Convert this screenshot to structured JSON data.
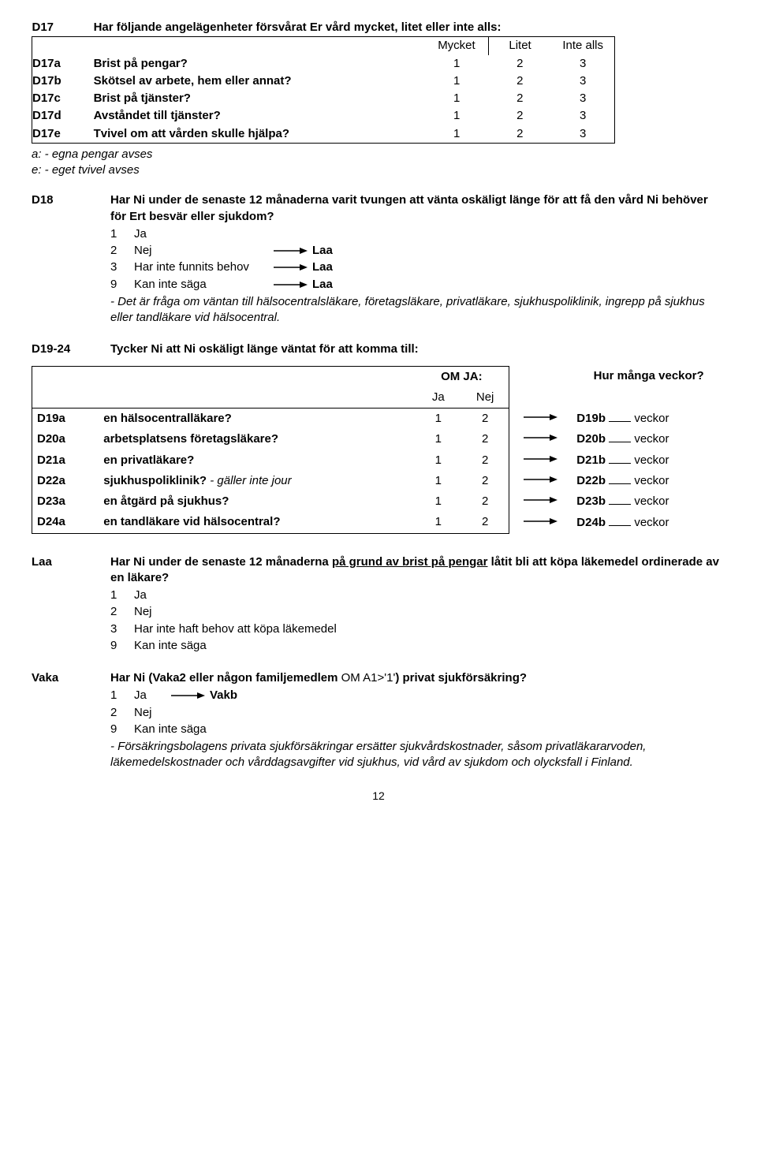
{
  "d17": {
    "code": "D17",
    "lead": "Har följande angelägenheter försvårat Er vård mycket, litet eller inte alls:",
    "cols": [
      "Mycket",
      "Litet",
      "Inte alls"
    ],
    "rows": [
      {
        "code": "D17a",
        "text": "Brist på pengar?",
        "vals": [
          "1",
          "2",
          "3"
        ]
      },
      {
        "code": "D17b",
        "text": "Skötsel av arbete, hem eller annat?",
        "vals": [
          "1",
          "2",
          "3"
        ]
      },
      {
        "code": "D17c",
        "text": "Brist på tjänster?",
        "vals": [
          "1",
          "2",
          "3"
        ]
      },
      {
        "code": "D17d",
        "text": "Avståndet till tjänster?",
        "vals": [
          "1",
          "2",
          "3"
        ]
      },
      {
        "code": "D17e",
        "text": "Tvivel om att vården skulle hjälpa?",
        "vals": [
          "1",
          "2",
          "3"
        ]
      }
    ],
    "note_a": "a: - egna pengar avses",
    "note_e": "e: - eget tvivel avses"
  },
  "d18": {
    "code": "D18",
    "lead": "Har Ni under de senaste 12 månaderna varit tvungen att vänta oskäligt länge för att få den vård Ni behöver för Ert besvär eller sjukdom?",
    "opts": [
      {
        "n": "1",
        "t": "Ja",
        "arrow": false,
        "dest": ""
      },
      {
        "n": "2",
        "t": "Nej",
        "arrow": true,
        "dest": "Laa"
      },
      {
        "n": "3",
        "t": "Har inte funnits behov",
        "arrow": true,
        "dest": "Laa"
      },
      {
        "n": "9",
        "t": "Kan inte säga",
        "arrow": true,
        "dest": "Laa"
      }
    ],
    "note": "- Det är fråga om väntan till hälsocentralsläkare, företagsläkare, privatläkare, sjukhuspoliklinik, ingrepp på sjukhus eller tandläkare vid hälsocentral."
  },
  "d19": {
    "code": "D19-24",
    "lead": "Tycker Ni att Ni oskäligt länge väntat för att komma till:",
    "head_omja": "OM JA:",
    "head_hur": "Hur många veckor?",
    "head_ja": "Ja",
    "head_nej": "Nej",
    "rows": [
      {
        "c": "D19a",
        "q": "en hälsocentralläkare?",
        "qi": "",
        "ja": "1",
        "nej": "2",
        "rc": "D19b",
        "rt": "veckor"
      },
      {
        "c": "D20a",
        "q": "arbetsplatsens företagsläkare?",
        "qi": "",
        "ja": "1",
        "nej": "2",
        "rc": "D20b",
        "rt": "veckor"
      },
      {
        "c": "D21a",
        "q": "en privatläkare?",
        "qi": "",
        "ja": "1",
        "nej": "2",
        "rc": "D21b",
        "rt": "veckor"
      },
      {
        "c": "D22a",
        "q": "sjukhuspoliklinik?",
        "qi": " - gäller inte jour",
        "ja": "1",
        "nej": "2",
        "rc": "D22b",
        "rt": "veckor"
      },
      {
        "c": "D23a",
        "q": "en åtgärd på sjukhus?",
        "qi": "",
        "ja": "1",
        "nej": "2",
        "rc": "D23b",
        "rt": "veckor"
      },
      {
        "c": "D24a",
        "q": "en tandläkare vid hälsocentral?",
        "qi": "",
        "ja": "1",
        "nej": "2",
        "rc": "D24b",
        "rt": "veckor"
      }
    ]
  },
  "laa": {
    "code": "Laa",
    "lead_pre": "Har Ni under de senaste 12 månaderna ",
    "lead_u": "på grund av brist på pengar",
    "lead_post": " låtit bli att köpa läkemedel ordinerade av en läkare?",
    "opts": [
      {
        "n": "1",
        "t": "Ja"
      },
      {
        "n": "2",
        "t": "Nej"
      },
      {
        "n": "3",
        "t": "Har inte haft behov att köpa läkemedel"
      },
      {
        "n": "9",
        "t": "Kan inte säga"
      }
    ]
  },
  "vaka": {
    "code": "Vaka",
    "lead_pre": "Har Ni (Vaka2 eller någon familjemedlem ",
    "lead_mid": "OM A1>'1'",
    "lead_post": ") privat sjukförsäkring?",
    "opts": [
      {
        "n": "1",
        "t": "Ja",
        "arrow": true,
        "dest": "Vakb"
      },
      {
        "n": "2",
        "t": "Nej",
        "arrow": false,
        "dest": ""
      },
      {
        "n": "9",
        "t": "Kan inte säga",
        "arrow": false,
        "dest": ""
      }
    ],
    "note": "- Försäkringsbolagens privata sjukförsäkringar ersätter sjukvårdskostnader, såsom privatläkararvoden, läkemedelskostnader och vårddagsavgifter vid sjukhus, vid vård av sjukdom och olycksfall i Finland."
  },
  "page": "12",
  "arrow_color": "#000000"
}
